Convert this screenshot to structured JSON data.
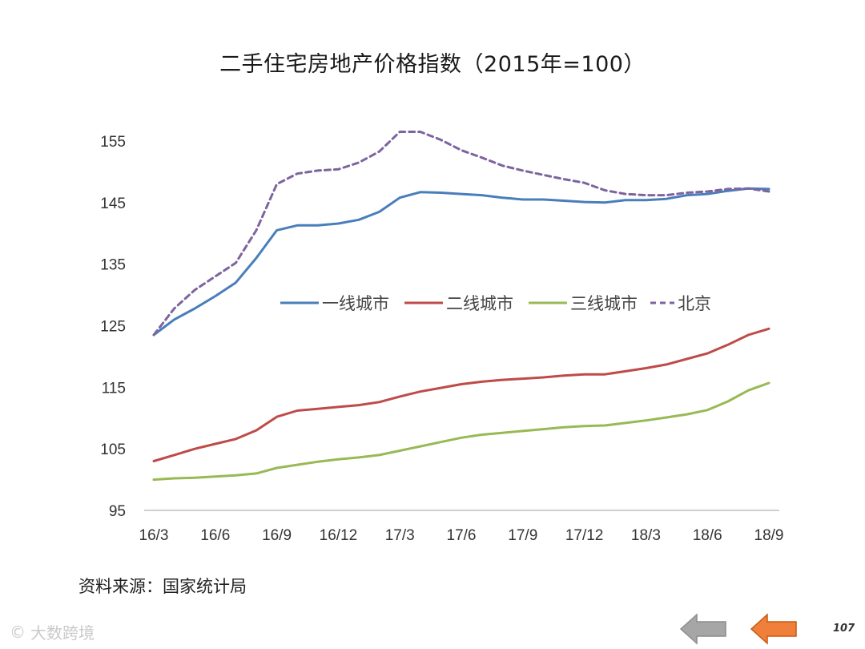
{
  "title": "二手住宅房地产价格指数（2015年=100）",
  "source": "资料来源：国家统计局",
  "watermark": "大数跨境",
  "page_number": "107",
  "colors": {
    "tier1": "#4a7ebb",
    "tier2": "#be4b48",
    "tier3": "#98b954",
    "beijing": "#7e649e",
    "axis": "#bfbfbf",
    "nav_prev": "#a6a6a6",
    "nav_next": "#f07f3c"
  },
  "chart_data": {
    "type": "line",
    "title": "二手住宅房地产价格指数（2015年=100）",
    "xlabel": "",
    "ylabel": "",
    "ylim": [
      95,
      155
    ],
    "yticks": [
      "95",
      "105",
      "115",
      "125",
      "135",
      "145",
      "155"
    ],
    "grid": false,
    "legend_position": "center",
    "xtick_labels": [
      "16/3",
      "16/6",
      "16/9",
      "16/12",
      "17/3",
      "17/6",
      "17/9",
      "17/12",
      "18/3",
      "18/6",
      "18/9"
    ],
    "x": [
      "16/3",
      "16/4",
      "16/5",
      "16/6",
      "16/7",
      "16/8",
      "16/9",
      "16/10",
      "16/11",
      "16/12",
      "17/1",
      "17/2",
      "17/3",
      "17/4",
      "17/5",
      "17/6",
      "17/7",
      "17/8",
      "17/9",
      "17/10",
      "17/11",
      "17/12",
      "18/1",
      "18/2",
      "18/3",
      "18/4",
      "18/5",
      "18/6",
      "18/7",
      "18/8",
      "18/9"
    ],
    "series": [
      {
        "name": "一线城市",
        "style": "solid",
        "values": [
          123.5,
          126.0,
          127.8,
          129.8,
          132.0,
          136.0,
          140.5,
          141.3,
          141.3,
          141.6,
          142.2,
          143.5,
          145.8,
          146.7,
          146.6,
          146.4,
          146.2,
          145.8,
          145.5,
          145.5,
          145.3,
          145.1,
          145.0,
          145.4,
          145.4,
          145.6,
          146.2,
          146.4,
          146.9,
          147.3,
          147.2
        ]
      },
      {
        "name": "二线城市",
        "style": "solid",
        "values": [
          103.0,
          104.0,
          105.0,
          105.8,
          106.6,
          108.0,
          110.2,
          111.2,
          111.5,
          111.8,
          112.1,
          112.6,
          113.5,
          114.3,
          114.9,
          115.5,
          115.9,
          116.2,
          116.4,
          116.6,
          116.9,
          117.1,
          117.1,
          117.6,
          118.1,
          118.7,
          119.6,
          120.5,
          121.9,
          123.5,
          124.5
        ]
      },
      {
        "name": "三线城市",
        "style": "solid",
        "values": [
          100.0,
          100.2,
          100.3,
          100.5,
          100.7,
          101.0,
          101.9,
          102.4,
          102.9,
          103.3,
          103.6,
          104.0,
          104.7,
          105.4,
          106.1,
          106.8,
          107.3,
          107.6,
          107.9,
          108.2,
          108.5,
          108.7,
          108.8,
          109.2,
          109.6,
          110.1,
          110.6,
          111.3,
          112.7,
          114.5,
          115.7
        ]
      },
      {
        "name": "北京",
        "style": "dashed",
        "values": [
          123.5,
          127.8,
          130.8,
          133.0,
          135.2,
          140.5,
          148.0,
          149.7,
          150.2,
          150.4,
          151.5,
          153.3,
          156.5,
          156.5,
          155.2,
          153.5,
          152.3,
          151.0,
          150.2,
          149.5,
          148.8,
          148.2,
          147.0,
          146.4,
          146.2,
          146.2,
          146.6,
          146.8,
          147.2,
          147.3,
          146.8
        ]
      }
    ]
  }
}
